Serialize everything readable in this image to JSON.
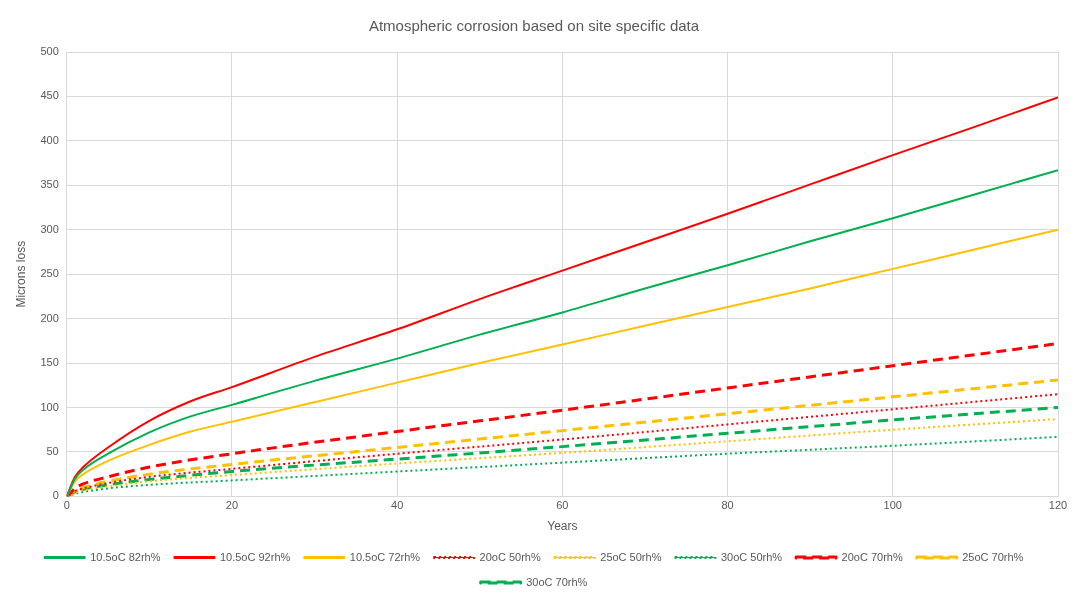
{
  "chart_data": {
    "type": "line",
    "title": "Atmospheric corrosion based on site specific data",
    "xlabel": "Years",
    "ylabel": "Microns loss",
    "xlim": [
      0,
      120
    ],
    "xticks": [
      0,
      20,
      40,
      60,
      80,
      100,
      120
    ],
    "ylim": [
      0,
      500
    ],
    "yticks": [
      0,
      50,
      100,
      150,
      200,
      250,
      300,
      350,
      400,
      450,
      500
    ],
    "grid": true,
    "legend": "bottom",
    "marker": "none",
    "series": [
      {
        "name": "10.5oC 82rh%",
        "color": "#00b050",
        "line_style": "solid",
        "x": [
          0,
          1,
          2,
          5,
          10,
          15,
          20,
          30,
          40,
          50,
          60,
          70,
          80,
          90,
          100,
          110,
          120
        ],
        "values": [
          0,
          20,
          30,
          48,
          72,
          90,
          103,
          130,
          155,
          182,
          207,
          234,
          260,
          287,
          313,
          340,
          367
        ]
      },
      {
        "name": "10.5oC 92rh%",
        "color": "#ff0000",
        "line_style": "solid",
        "x": [
          0,
          1,
          2,
          5,
          10,
          15,
          20,
          30,
          40,
          50,
          60,
          70,
          80,
          90,
          100,
          110,
          120
        ],
        "values": [
          0,
          22,
          33,
          55,
          85,
          107,
          123,
          157,
          188,
          222,
          254,
          286,
          318,
          351,
          384,
          416,
          449
        ]
      },
      {
        "name": "10.5oC 72rh%",
        "color": "#ffc000",
        "line_style": "solid",
        "x": [
          0,
          1,
          2,
          5,
          10,
          15,
          20,
          30,
          40,
          50,
          60,
          70,
          80,
          90,
          100,
          110,
          120
        ],
        "values": [
          0,
          17,
          25,
          40,
          58,
          73,
          84,
          106,
          128,
          150,
          171,
          192,
          213,
          234,
          256,
          278,
          300
        ]
      },
      {
        "name": "20oC 50rh%",
        "color": "#ff0000",
        "line_style": "dotted",
        "x": [
          0,
          1,
          2,
          5,
          10,
          20,
          40,
          60,
          80,
          100,
          120
        ],
        "values": [
          0,
          6,
          9,
          15,
          22,
          31,
          48,
          64,
          81,
          98,
          115
        ]
      },
      {
        "name": "25oC 50rh%",
        "color": "#ffc000",
        "line_style": "dotted",
        "x": [
          0,
          1,
          2,
          5,
          10,
          20,
          40,
          60,
          80,
          100,
          120
        ],
        "values": [
          0,
          4,
          7,
          11,
          17,
          24,
          37,
          49,
          62,
          75,
          87
        ]
      },
      {
        "name": "30oC 50rh%",
        "color": "#00b050",
        "line_style": "dotted",
        "x": [
          0,
          1,
          2,
          5,
          10,
          20,
          40,
          60,
          80,
          100,
          120
        ],
        "values": [
          0,
          3,
          5,
          9,
          13,
          18,
          28,
          38,
          48,
          57,
          67
        ]
      },
      {
        "name": "20oC 70rh%",
        "color": "#ff0000",
        "line_style": "dashed",
        "x": [
          0,
          1,
          2,
          5,
          10,
          20,
          40,
          60,
          80,
          100,
          120
        ],
        "values": [
          0,
          9,
          14,
          22,
          33,
          48,
          73,
          97,
          122,
          147,
          172
        ]
      },
      {
        "name": "25oC 70rh%",
        "color": "#ffc000",
        "line_style": "dashed",
        "x": [
          0,
          1,
          2,
          5,
          10,
          20,
          40,
          60,
          80,
          100,
          120
        ],
        "values": [
          0,
          7,
          10,
          17,
          25,
          36,
          55,
          74,
          93,
          112,
          131
        ]
      },
      {
        "name": "30oC 70rh%",
        "color": "#00b050",
        "line_style": "dashed",
        "x": [
          0,
          1,
          2,
          5,
          10,
          20,
          40,
          60,
          80,
          100,
          120
        ],
        "values": [
          0,
          5,
          8,
          13,
          19,
          28,
          42,
          56,
          71,
          86,
          100
        ]
      }
    ]
  }
}
